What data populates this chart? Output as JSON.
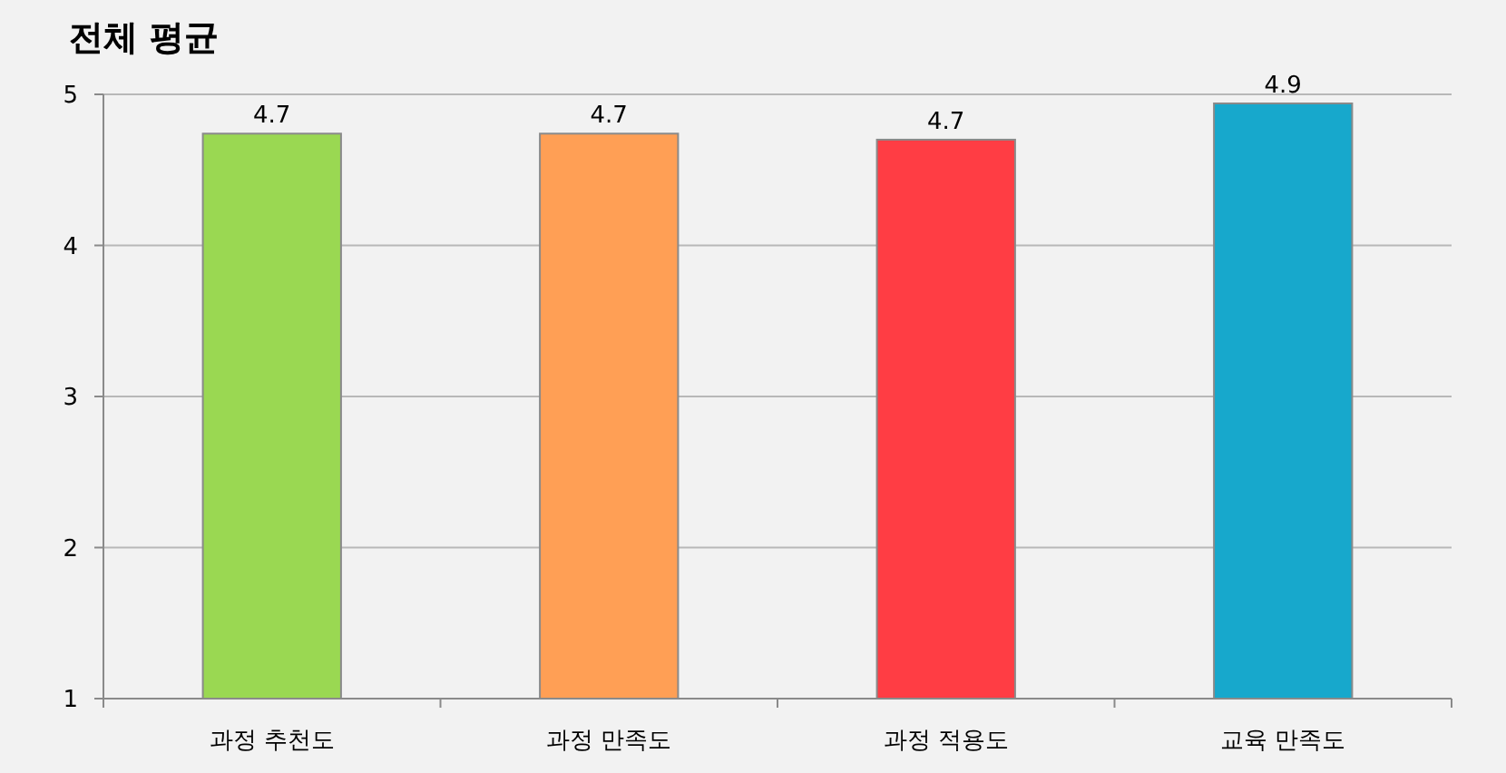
{
  "chart_data": {
    "type": "bar",
    "title": "전체 평균",
    "categories": [
      "과정 추천도",
      "과정 만족도",
      "과정 적용도",
      "교육 만족도"
    ],
    "values": [
      4.74,
      4.74,
      4.7,
      4.94
    ],
    "value_labels": [
      "4.7",
      "4.7",
      "4.7",
      "4.9"
    ],
    "colors": [
      "#9ad852",
      "#ff9f55",
      "#ff3d44",
      "#17a8cc"
    ],
    "ylim": [
      1,
      5
    ],
    "yticks": [
      1,
      2,
      3,
      4,
      5
    ],
    "grid": "y"
  }
}
